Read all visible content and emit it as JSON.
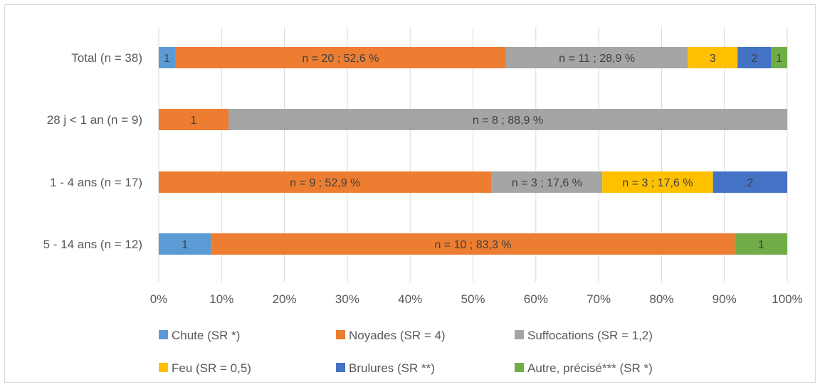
{
  "chart_data": {
    "type": "bar",
    "orientation": "horizontal",
    "stacked": "percent",
    "categories": [
      "Total (n = 38)",
      "28 j < 1 an (n = 9)",
      "1 - 4 ans (n = 17)",
      "5 - 14 ans (n = 12)"
    ],
    "xlim": [
      0,
      100
    ],
    "x_ticks": [
      "0%",
      "10%",
      "20%",
      "30%",
      "40%",
      "50%",
      "60%",
      "70%",
      "80%",
      "90%",
      "100%"
    ],
    "grid": "vertical",
    "legend_position": "bottom",
    "series": [
      {
        "name": "Chute (SR *)",
        "color": "#5b9bd5",
        "values": [
          2.6,
          0,
          0,
          8.3
        ],
        "labels": [
          "1",
          "",
          "",
          "1"
        ]
      },
      {
        "name": "Noyades (SR = 4)",
        "color": "#ed7d31",
        "values": [
          52.6,
          11.1,
          52.9,
          83.3
        ],
        "labels": [
          "n = 20 ; 52,6 %",
          "1",
          "n = 9 ; 52,9 %",
          "n = 10 ; 83,3 %"
        ]
      },
      {
        "name": "Suffocations (SR = 1,2)",
        "color": "#a5a5a5",
        "values": [
          28.9,
          88.9,
          17.6,
          0
        ],
        "labels": [
          "n = 11 ; 28,9 %",
          "n = 8 ; 88,9 %",
          "n = 3 ; 17,6 %",
          ""
        ]
      },
      {
        "name": "Feu (SR = 0,5)",
        "color": "#ffc000",
        "values": [
          7.9,
          0,
          17.6,
          0
        ],
        "labels": [
          "3",
          "",
          "n = 3 ; 17,6 %",
          ""
        ]
      },
      {
        "name": "Brulures (SR **)",
        "color": "#4472c4",
        "values": [
          5.3,
          0,
          11.8,
          0
        ],
        "labels": [
          "2",
          "",
          "2",
          ""
        ]
      },
      {
        "name": "Autre, précisé*** (SR *)",
        "color": "#70ad47",
        "values": [
          2.6,
          0,
          0,
          8.3
        ],
        "labels": [
          "1",
          "",
          "",
          "1"
        ]
      }
    ]
  }
}
